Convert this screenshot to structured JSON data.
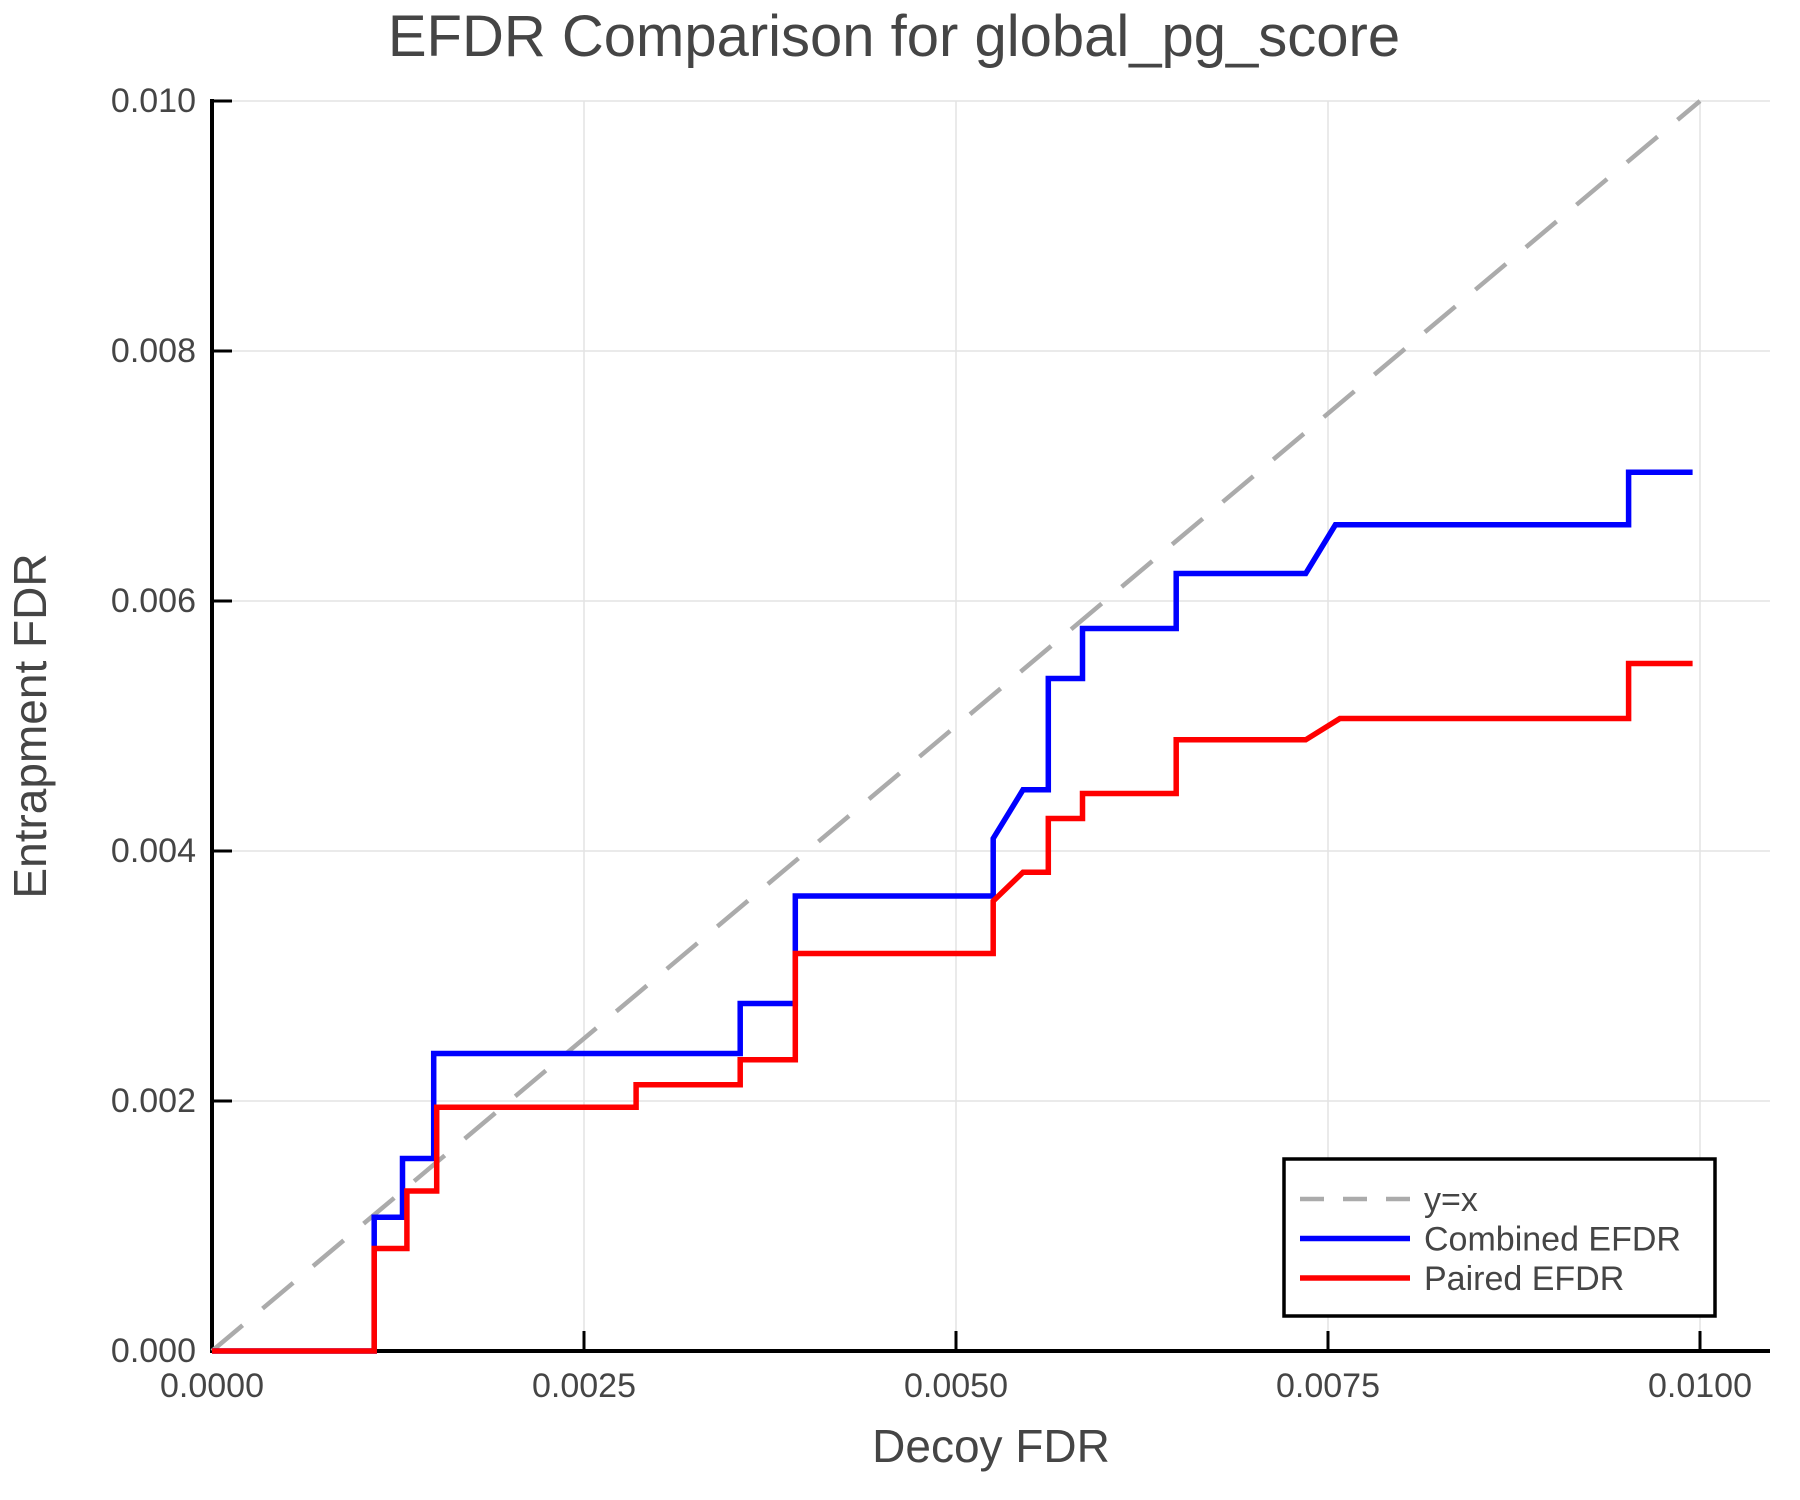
{
  "chart_data": {
    "type": "line",
    "title": "EFDR Comparison for global_pg_score",
    "xlabel": "Decoy FDR",
    "ylabel": "Entrapment FDR",
    "xlim": [
      0.0,
      0.0105
    ],
    "ylim": [
      0.0,
      0.01
    ],
    "grid": true,
    "legend_position": "bottom-right",
    "x_ticks": {
      "values": [
        0.0,
        0.0025,
        0.005,
        0.0075,
        0.01
      ],
      "labels": [
        "0.0000",
        "0.0025",
        "0.0050",
        "0.0075",
        "0.0100"
      ]
    },
    "y_ticks": {
      "values": [
        0.0,
        0.002,
        0.004,
        0.006,
        0.008,
        0.01
      ],
      "labels": [
        "0.000",
        "0.002",
        "0.004",
        "0.006",
        "0.008",
        "0.010"
      ]
    },
    "series": [
      {
        "name": "y=x",
        "style": "dashed",
        "color": "#ababab",
        "width": 4.5,
        "points": [
          [
            0.0,
            0.0
          ],
          [
            0.01,
            0.01
          ]
        ]
      },
      {
        "name": "Combined EFDR",
        "style": "solid",
        "color": "#0000ff",
        "width": 5.5,
        "points": [
          [
            0.0,
            0.0
          ],
          [
            0.00109,
            0.0
          ],
          [
            0.00109,
            0.00107
          ],
          [
            0.00128,
            0.00107
          ],
          [
            0.00128,
            0.00154
          ],
          [
            0.00149,
            0.00154
          ],
          [
            0.00149,
            0.00238
          ],
          [
            0.00355,
            0.00238
          ],
          [
            0.00355,
            0.00278
          ],
          [
            0.00392,
            0.00278
          ],
          [
            0.00392,
            0.00364
          ],
          [
            0.00525,
            0.00364
          ],
          [
            0.00525,
            0.0041
          ],
          [
            0.00545,
            0.00449
          ],
          [
            0.00562,
            0.00449
          ],
          [
            0.00562,
            0.00538
          ],
          [
            0.00585,
            0.00538
          ],
          [
            0.00585,
            0.00578
          ],
          [
            0.00648,
            0.00578
          ],
          [
            0.00648,
            0.00622
          ],
          [
            0.00735,
            0.00622
          ],
          [
            0.00755,
            0.00661
          ],
          [
            0.00952,
            0.00661
          ],
          [
            0.00952,
            0.00703
          ],
          [
            0.00995,
            0.00703
          ]
        ]
      },
      {
        "name": "Paired EFDR",
        "style": "solid",
        "color": "#ff0000",
        "width": 5.5,
        "points": [
          [
            0.0,
            0.0
          ],
          [
            0.00109,
            0.0
          ],
          [
            0.00109,
            0.00082
          ],
          [
            0.00131,
            0.00082
          ],
          [
            0.00131,
            0.00128
          ],
          [
            0.00151,
            0.00128
          ],
          [
            0.00151,
            0.00195
          ],
          [
            0.00285,
            0.00195
          ],
          [
            0.00285,
            0.00213
          ],
          [
            0.00355,
            0.00213
          ],
          [
            0.00355,
            0.00233
          ],
          [
            0.00392,
            0.00233
          ],
          [
            0.00392,
            0.00318
          ],
          [
            0.00525,
            0.00318
          ],
          [
            0.00525,
            0.0036
          ],
          [
            0.00545,
            0.00383
          ],
          [
            0.00562,
            0.00383
          ],
          [
            0.00562,
            0.00426
          ],
          [
            0.00585,
            0.00426
          ],
          [
            0.00585,
            0.00446
          ],
          [
            0.00648,
            0.00446
          ],
          [
            0.00648,
            0.00489
          ],
          [
            0.00735,
            0.00489
          ],
          [
            0.00758,
            0.00506
          ],
          [
            0.00952,
            0.00506
          ],
          [
            0.00952,
            0.0055
          ],
          [
            0.00995,
            0.0055
          ]
        ]
      }
    ],
    "legend_entries": [
      "y=x",
      "Combined EFDR",
      "Paired EFDR"
    ]
  }
}
